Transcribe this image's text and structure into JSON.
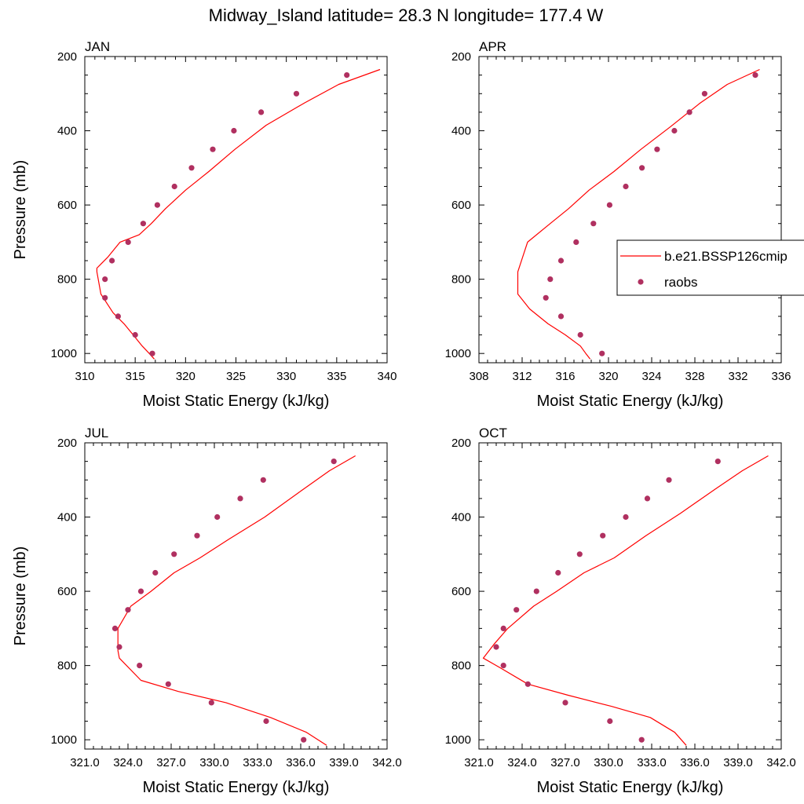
{
  "title": "Midway_Island  latitude= 28.3 N longitude= 177.4 W",
  "legend": {
    "model_label": "b.e21.BSSP126cmip",
    "obs_label": "raobs",
    "placement": "right of APR panel"
  },
  "colors": {
    "model_line": "#ff0000",
    "obs_marker": "#b03060",
    "axes": "#000000",
    "background": "#ffffff"
  },
  "chart_data": [
    {
      "type": "line",
      "panel": "JAN",
      "xlabel": "Moist Static Energy (kJ/kg)",
      "ylabel": "Pressure (mb)",
      "xlim": [
        310,
        340
      ],
      "ylim": [
        200,
        1025
      ],
      "y_reversed": true,
      "xticks": [
        310,
        315,
        320,
        325,
        330,
        335,
        340
      ],
      "xtick_labels": [
        "310",
        "315",
        "320",
        "325",
        "330",
        "335",
        "340"
      ],
      "yticks": [
        200,
        400,
        600,
        800,
        1000
      ],
      "ytick_labels": [
        "200",
        "400",
        "600",
        "800",
        "1000"
      ],
      "series": [
        {
          "name": "b.e21.BSSP126cmip",
          "kind": "line",
          "x": [
            339.3,
            335.2,
            331.8,
            328.0,
            324.9,
            322.3,
            320.0,
            318.0,
            316.6,
            315.4,
            313.5,
            312.3,
            311.2,
            311.2,
            311.6,
            312.8,
            313.9,
            314.8,
            315.7,
            316.4,
            316.9
          ],
          "y": [
            235,
            275,
            325,
            385,
            450,
            510,
            560,
            610,
            650,
            680,
            700,
            740,
            770,
            780,
            840,
            890,
            920,
            950,
            980,
            1000,
            1015
          ]
        },
        {
          "name": "raobs",
          "kind": "scatter",
          "x": [
            336.0,
            331.0,
            327.5,
            324.8,
            322.7,
            320.6,
            318.9,
            317.2,
            315.8,
            314.3,
            312.7,
            312.0,
            312.0,
            313.3,
            315.0,
            316.7
          ],
          "y": [
            250,
            300,
            350,
            400,
            450,
            500,
            550,
            600,
            650,
            700,
            750,
            800,
            850,
            900,
            950,
            1000
          ]
        }
      ]
    },
    {
      "type": "line",
      "panel": "APR",
      "xlabel": "Moist Static Energy (kJ/kg)",
      "ylabel": "",
      "xlim": [
        308,
        336
      ],
      "ylim": [
        200,
        1025
      ],
      "y_reversed": true,
      "xticks": [
        308,
        312,
        316,
        320,
        324,
        328,
        332,
        336
      ],
      "xtick_labels": [
        "308",
        "312",
        "316",
        "320",
        "324",
        "328",
        "332",
        "336"
      ],
      "yticks": [
        200,
        400,
        600,
        800,
        1000
      ],
      "ytick_labels": [
        "200",
        "400",
        "600",
        "800",
        "1000"
      ],
      "series": [
        {
          "name": "b.e21.BSSP126cmip",
          "kind": "line",
          "x": [
            334.0,
            331.0,
            328.5,
            325.7,
            323.0,
            320.5,
            318.2,
            316.3,
            314.6,
            312.5,
            311.6,
            311.6,
            312.7,
            314.4,
            316.0,
            317.4,
            317.9,
            318.3
          ],
          "y": [
            235,
            275,
            325,
            390,
            450,
            510,
            560,
            610,
            650,
            700,
            780,
            840,
            880,
            920,
            950,
            980,
            1000,
            1015
          ]
        },
        {
          "name": "raobs",
          "kind": "scatter",
          "x": [
            333.6,
            328.9,
            327.5,
            326.1,
            324.5,
            323.1,
            321.6,
            320.1,
            318.6,
            317.0,
            315.6,
            314.6,
            314.2,
            315.6,
            317.4,
            319.4
          ],
          "y": [
            250,
            300,
            350,
            400,
            450,
            500,
            550,
            600,
            650,
            700,
            750,
            800,
            850,
            900,
            950,
            1000
          ]
        }
      ]
    },
    {
      "type": "line",
      "panel": "JUL",
      "xlabel": "Moist Static Energy (kJ/kg)",
      "ylabel": "Pressure (mb)",
      "xlim": [
        321.0,
        342.0
      ],
      "ylim": [
        200,
        1025
      ],
      "y_reversed": true,
      "xticks": [
        321,
        324,
        327,
        330,
        333,
        336,
        339,
        342
      ],
      "xtick_labels": [
        "321.0",
        "324.0",
        "327.0",
        "330.0",
        "333.0",
        "336.0",
        "339.0",
        "342.0"
      ],
      "yticks": [
        200,
        400,
        600,
        800,
        1000
      ],
      "ytick_labels": [
        "200",
        "400",
        "600",
        "800",
        "1000"
      ],
      "series": [
        {
          "name": "b.e21.BSSP126cmip",
          "kind": "line",
          "x": [
            339.8,
            338.0,
            336.0,
            333.5,
            331.0,
            329.0,
            327.2,
            325.6,
            324.2,
            323.3,
            323.3,
            323.4,
            324.9,
            327.5,
            330.8,
            333.9,
            336.4,
            337.8
          ],
          "y": [
            235,
            275,
            330,
            400,
            460,
            510,
            550,
            600,
            640,
            700,
            760,
            780,
            840,
            870,
            900,
            940,
            980,
            1015
          ]
        },
        {
          "name": "raobs",
          "kind": "scatter",
          "x": [
            338.3,
            333.4,
            331.8,
            330.2,
            328.8,
            327.2,
            325.9,
            324.9,
            324.0,
            323.1,
            323.4,
            324.8,
            326.8,
            329.8,
            333.6,
            336.2
          ],
          "y": [
            250,
            300,
            350,
            400,
            450,
            500,
            550,
            600,
            650,
            700,
            750,
            800,
            850,
            900,
            950,
            1000
          ]
        }
      ]
    },
    {
      "type": "line",
      "panel": "OCT",
      "xlabel": "Moist Static Energy (kJ/kg)",
      "ylabel": "",
      "xlim": [
        321.0,
        342.0
      ],
      "ylim": [
        200,
        1025
      ],
      "y_reversed": true,
      "xticks": [
        321,
        324,
        327,
        330,
        333,
        336,
        339,
        342
      ],
      "xtick_labels": [
        "321.0",
        "324.0",
        "327.0",
        "330.0",
        "333.0",
        "336.0",
        "339.0",
        "342.0"
      ],
      "yticks": [
        200,
        400,
        600,
        800,
        1000
      ],
      "ytick_labels": [
        "200",
        "400",
        "600",
        "800",
        "1000"
      ],
      "series": [
        {
          "name": "b.e21.BSSP126cmip",
          "kind": "line",
          "x": [
            341.1,
            339.3,
            337.4,
            335.0,
            332.6,
            330.4,
            328.3,
            326.4,
            324.8,
            323.0,
            322.1,
            321.3,
            322.2,
            324.4,
            327.2,
            330.2,
            332.9,
            334.6,
            335.4
          ],
          "y": [
            235,
            275,
            325,
            390,
            450,
            510,
            550,
            600,
            640,
            700,
            740,
            780,
            800,
            850,
            880,
            910,
            940,
            980,
            1015
          ]
        },
        {
          "name": "raobs",
          "kind": "scatter",
          "x": [
            337.6,
            334.2,
            332.7,
            331.2,
            329.6,
            328.0,
            326.5,
            325.0,
            323.6,
            322.7,
            322.2,
            322.7,
            324.4,
            327.0,
            330.1,
            332.3
          ],
          "y": [
            250,
            300,
            350,
            400,
            450,
            500,
            550,
            600,
            650,
            700,
            750,
            800,
            850,
            900,
            950,
            1000
          ]
        }
      ]
    }
  ]
}
